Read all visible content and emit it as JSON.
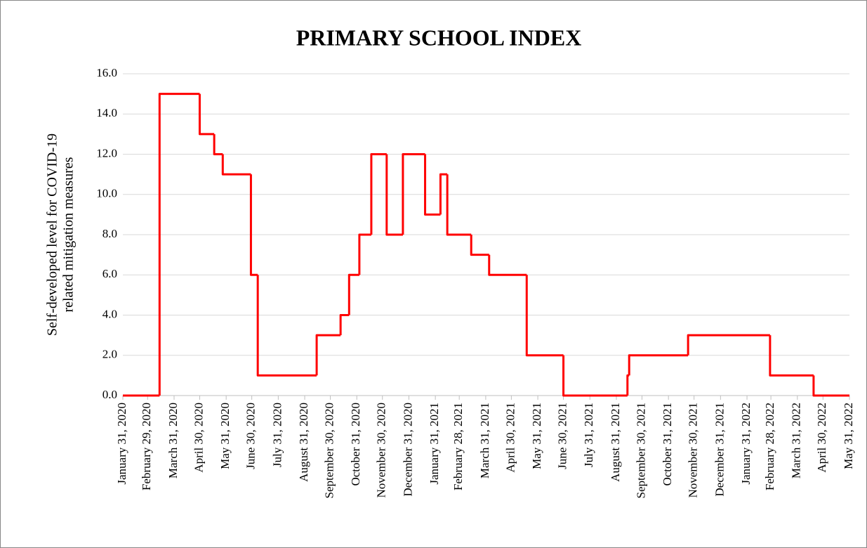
{
  "chart_data": {
    "type": "line",
    "step": "post",
    "title": "PRIMARY SCHOOL INDEX",
    "ylabel": [
      "Self-developed level for COVID-19",
      "related mitigation measures"
    ],
    "xlim": [
      "2020-01-31",
      "2022-05-31"
    ],
    "xticks": [
      {
        "value": "2020-01-31",
        "label": "January 31, 2020"
      },
      {
        "value": "2020-02-29",
        "label": "February 29, 2020"
      },
      {
        "value": "2020-03-31",
        "label": "March 31, 2020"
      },
      {
        "value": "2020-04-30",
        "label": "April 30, 2020"
      },
      {
        "value": "2020-05-31",
        "label": "May 31, 2020"
      },
      {
        "value": "2020-06-30",
        "label": "June 30, 2020"
      },
      {
        "value": "2020-07-31",
        "label": "July 31, 2020"
      },
      {
        "value": "2020-08-31",
        "label": "August 31, 2020"
      },
      {
        "value": "2020-09-30",
        "label": "September 30, 2020"
      },
      {
        "value": "2020-10-31",
        "label": "October 31, 2020"
      },
      {
        "value": "2020-11-30",
        "label": "November 30, 2020"
      },
      {
        "value": "2020-12-31",
        "label": "December 31, 2020"
      },
      {
        "value": "2021-01-31",
        "label": "January 31, 2021"
      },
      {
        "value": "2021-02-28",
        "label": "February 28, 2021"
      },
      {
        "value": "2021-03-31",
        "label": "March 31, 2021"
      },
      {
        "value": "2021-04-30",
        "label": "April 30, 2021"
      },
      {
        "value": "2021-05-31",
        "label": "May 31, 2021"
      },
      {
        "value": "2021-06-30",
        "label": "June 30, 2021"
      },
      {
        "value": "2021-07-31",
        "label": "July 31, 2021"
      },
      {
        "value": "2021-08-31",
        "label": "August 31, 2021"
      },
      {
        "value": "2021-09-30",
        "label": "September 30, 2021"
      },
      {
        "value": "2021-10-31",
        "label": "October 31, 2021"
      },
      {
        "value": "2021-11-30",
        "label": "November 30, 2021"
      },
      {
        "value": "2021-12-31",
        "label": "December 31, 2021"
      },
      {
        "value": "2022-01-31",
        "label": "January 31, 2022"
      },
      {
        "value": "2022-02-28",
        "label": "February 28, 2022"
      },
      {
        "value": "2022-03-31",
        "label": "March 31, 2022"
      },
      {
        "value": "2022-04-30",
        "label": "April 30, 2022"
      },
      {
        "value": "2022-05-31",
        "label": "May 31, 2022"
      }
    ],
    "ylim": [
      0,
      16
    ],
    "yticks": [
      {
        "value": 0,
        "label": "0.0"
      },
      {
        "value": 2,
        "label": "2.0"
      },
      {
        "value": 4,
        "label": "4.0"
      },
      {
        "value": 6,
        "label": "6.0"
      },
      {
        "value": 8,
        "label": "8.0"
      },
      {
        "value": 10,
        "label": "10.0"
      },
      {
        "value": 12,
        "label": "12.0"
      },
      {
        "value": 14,
        "label": "14.0"
      },
      {
        "value": 16,
        "label": "16.0"
      }
    ],
    "grid": true,
    "color": "#ff0000",
    "x": [
      "2020-01-31",
      "2020-03-14",
      "2020-04-30",
      "2020-05-17",
      "2020-05-27",
      "2020-06-29",
      "2020-07-07",
      "2020-09-14",
      "2020-10-12",
      "2020-10-22",
      "2020-11-03",
      "2020-11-17",
      "2020-12-05",
      "2020-12-24",
      "2021-01-19",
      "2021-02-06",
      "2021-02-14",
      "2021-03-14",
      "2021-04-04",
      "2021-05-18",
      "2021-06-30",
      "2021-09-13",
      "2021-09-15",
      "2021-11-23",
      "2022-02-27",
      "2022-04-19",
      "2022-05-31"
    ],
    "values": [
      0,
      15,
      13,
      12,
      11,
      6,
      1,
      3,
      4,
      6,
      8,
      12,
      8,
      12,
      9,
      11,
      8,
      7,
      6,
      2,
      0,
      1,
      2,
      3,
      1,
      0,
      0
    ]
  }
}
